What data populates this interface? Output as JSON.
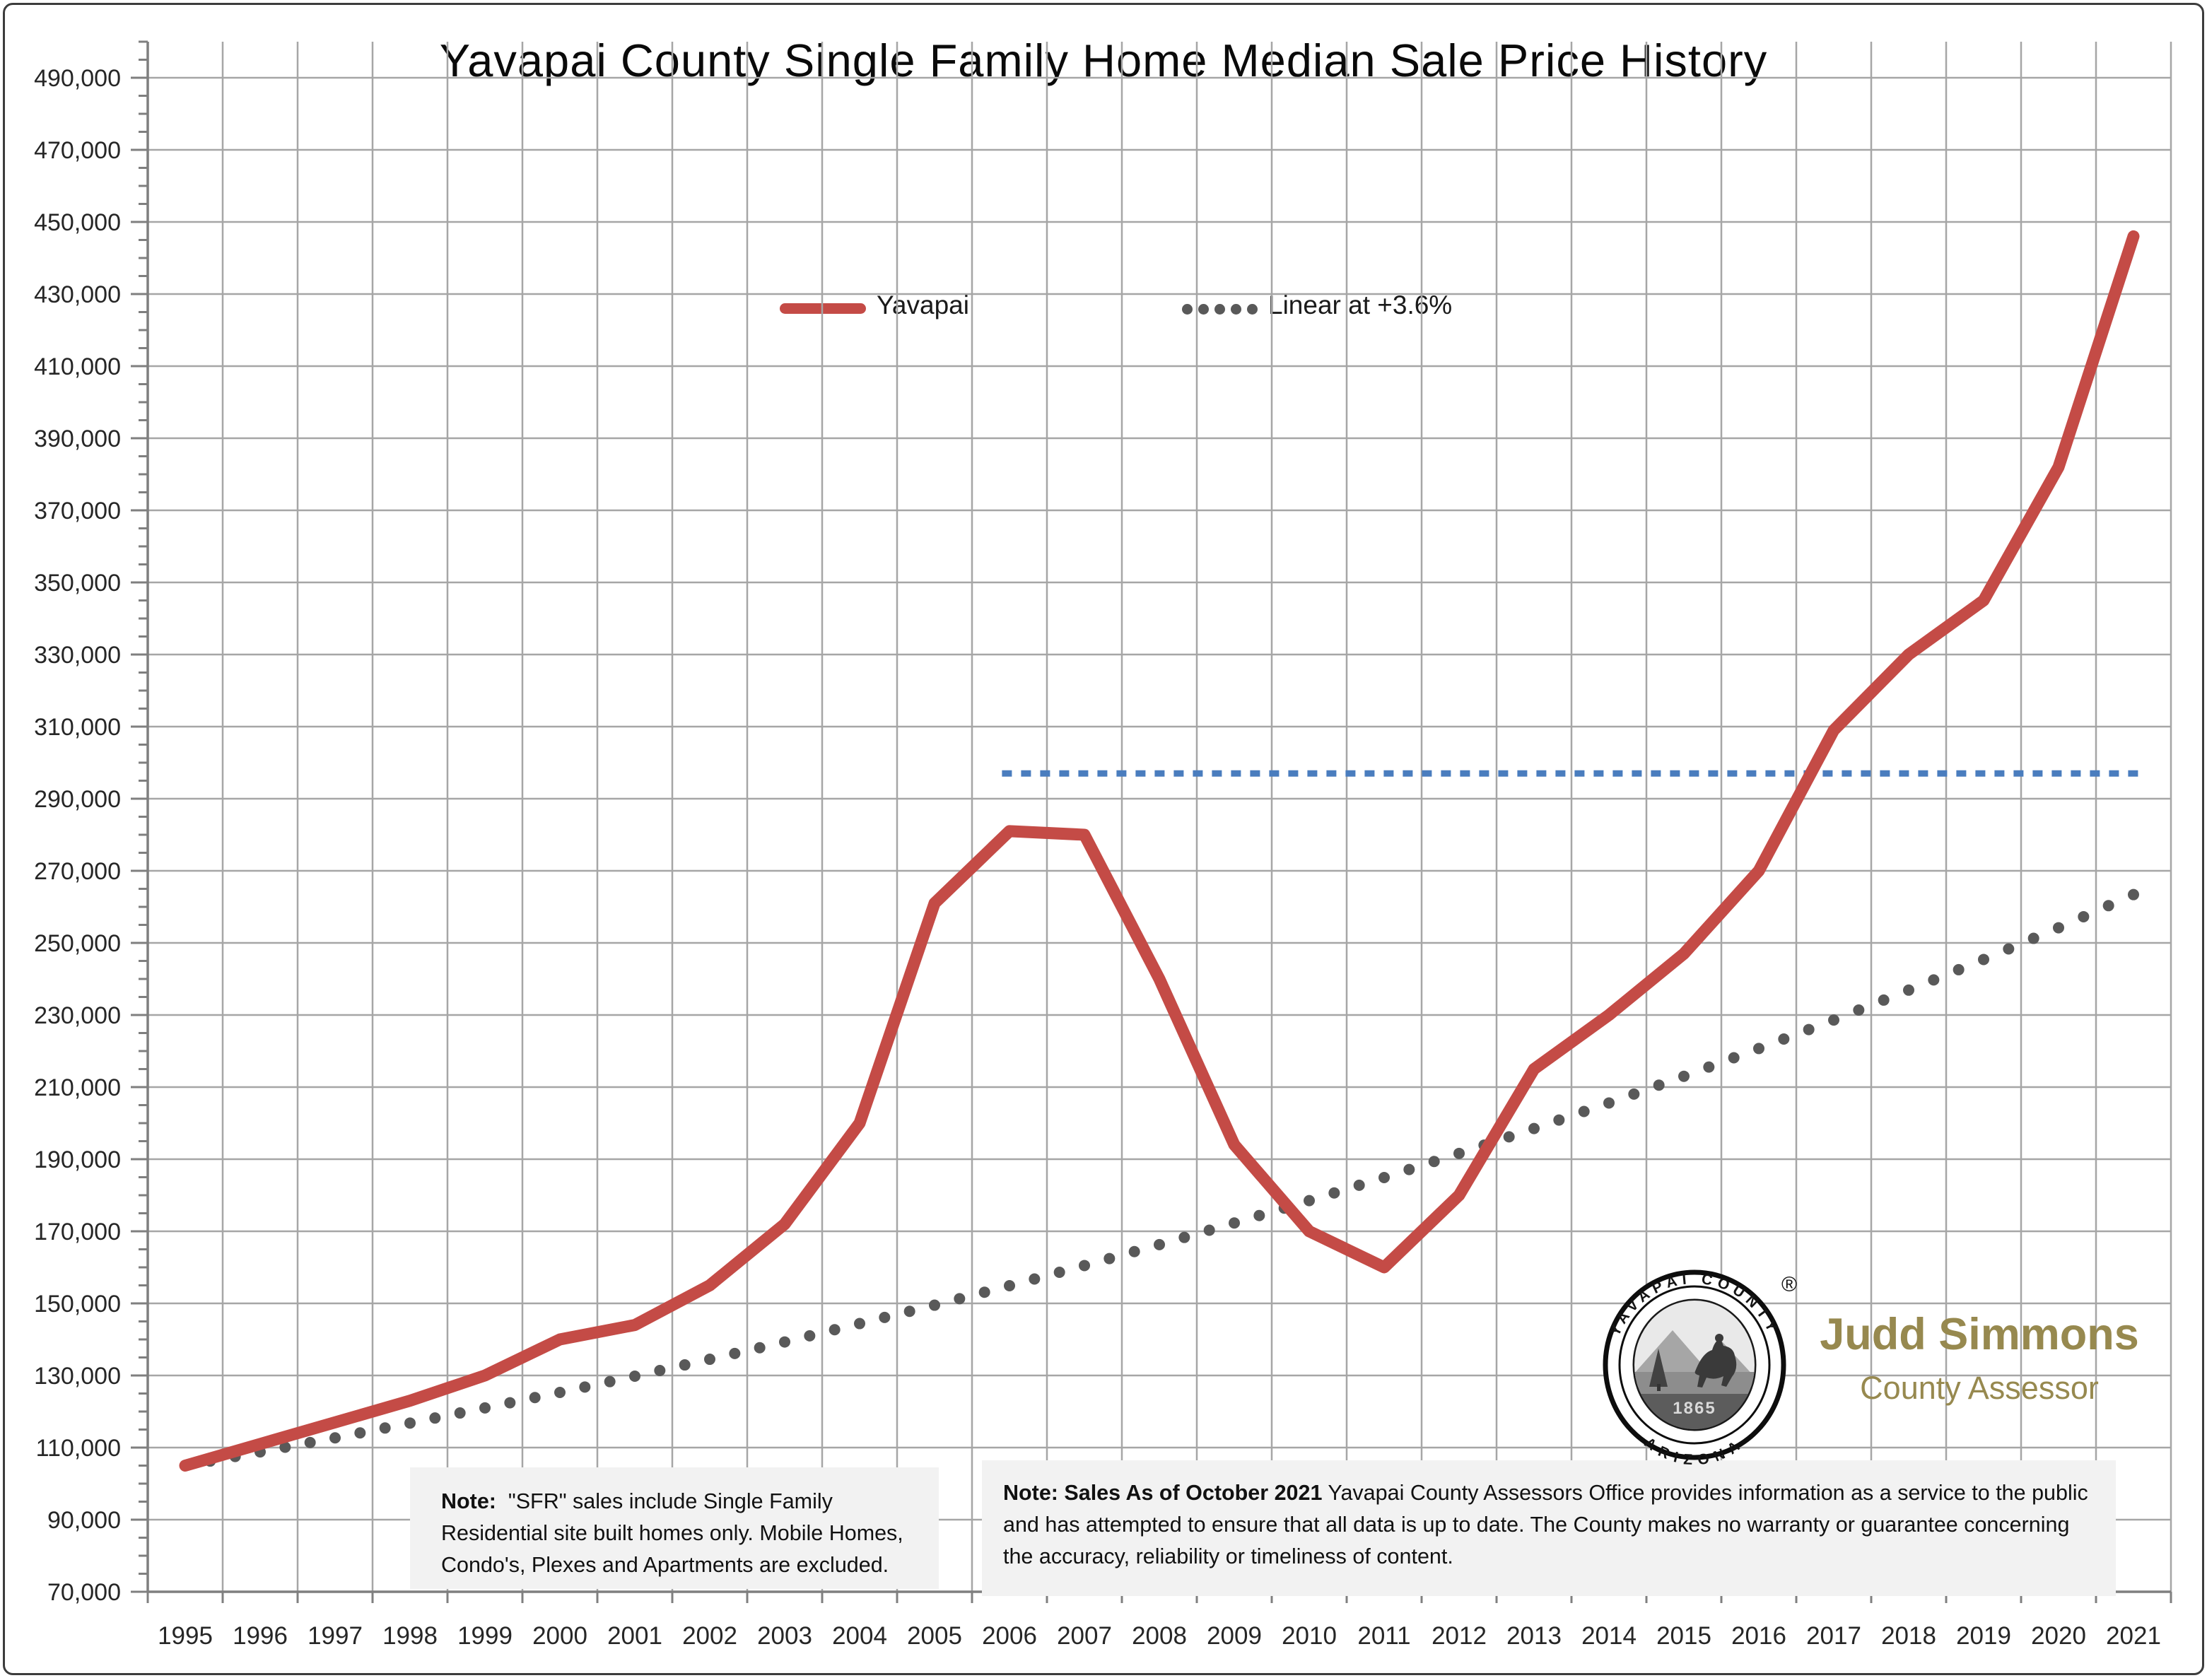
{
  "page": {
    "title": "Yavapai County Single Family Home Median Sale Price History"
  },
  "legend": {
    "series1_label": "Yavapai",
    "series2_label": "Linear at +3.6%"
  },
  "notes": {
    "sfr": {
      "label": "Note:",
      "line1": "\"SFR\" sales include Single Family",
      "line2": "Residential site built homes only.  Mobile Homes,",
      "line3": "Condo's, Plexes and Apartments are excluded."
    },
    "disclaimer": {
      "label": "Note: Sales As of October 2021",
      "body": "Yavapai County Assessors Office provides information as a service to the public and has attempted to ensure that all data is up to date.  The County makes no warranty or guarantee concerning the accuracy, reliability or timeliness of content."
    }
  },
  "branding": {
    "name": "Judd Simmons",
    "role": "County Assessor",
    "accent_color": "#97894F",
    "seal_top_text": "YAVAPAI COUNTY",
    "seal_bottom_text": "ARIZONA",
    "seal_year": "1865",
    "seal_registered_mark": "®"
  },
  "chart_data": {
    "type": "line",
    "title": "Yavapai County Single Family Home Median Sale Price History",
    "xlabel": "",
    "ylabel": "",
    "x": [
      1995,
      1996,
      1997,
      1998,
      1999,
      2000,
      2001,
      2002,
      2003,
      2004,
      2005,
      2006,
      2007,
      2008,
      2009,
      2010,
      2011,
      2012,
      2013,
      2014,
      2015,
      2016,
      2017,
      2018,
      2019,
      2020,
      2021
    ],
    "series": [
      {
        "name": "Yavapai",
        "style": "solid",
        "color": "#C44B46",
        "values": [
          105000,
          111000,
          117000,
          123000,
          130000,
          140000,
          144000,
          155000,
          172000,
          200000,
          261000,
          281000,
          280000,
          240000,
          194000,
          170000,
          160000,
          180000,
          215000,
          230000,
          247000,
          270000,
          309000,
          330000,
          345000,
          382000,
          446000
        ]
      },
      {
        "name": "Linear at +3.6%",
        "style": "dotted",
        "color": "#595959",
        "values": [
          105000,
          108800,
          112700,
          116800,
          121000,
          125300,
          129800,
          134500,
          139300,
          144400,
          149500,
          154900,
          160500,
          166300,
          172300,
          178500,
          184900,
          191600,
          198500,
          205600,
          213000,
          220700,
          228600,
          236900,
          245400,
          254200,
          263400
        ]
      }
    ],
    "reference_line": {
      "value": 297000,
      "x_start": 2005.7,
      "x_end": 2021.15,
      "style": "dashed",
      "color": "#4A7DBE"
    },
    "y_axis": {
      "min": 70000,
      "max": 500000,
      "major_step": 20000,
      "minor_step": 5000,
      "label_min": 70000,
      "label_max": 490000,
      "label_format": "thousands-comma"
    },
    "grid": true,
    "legend_position": "top",
    "colors": {
      "gridline": "#A6A6A6",
      "axis": "#7F7F7F",
      "tick_label": "#262626"
    }
  }
}
